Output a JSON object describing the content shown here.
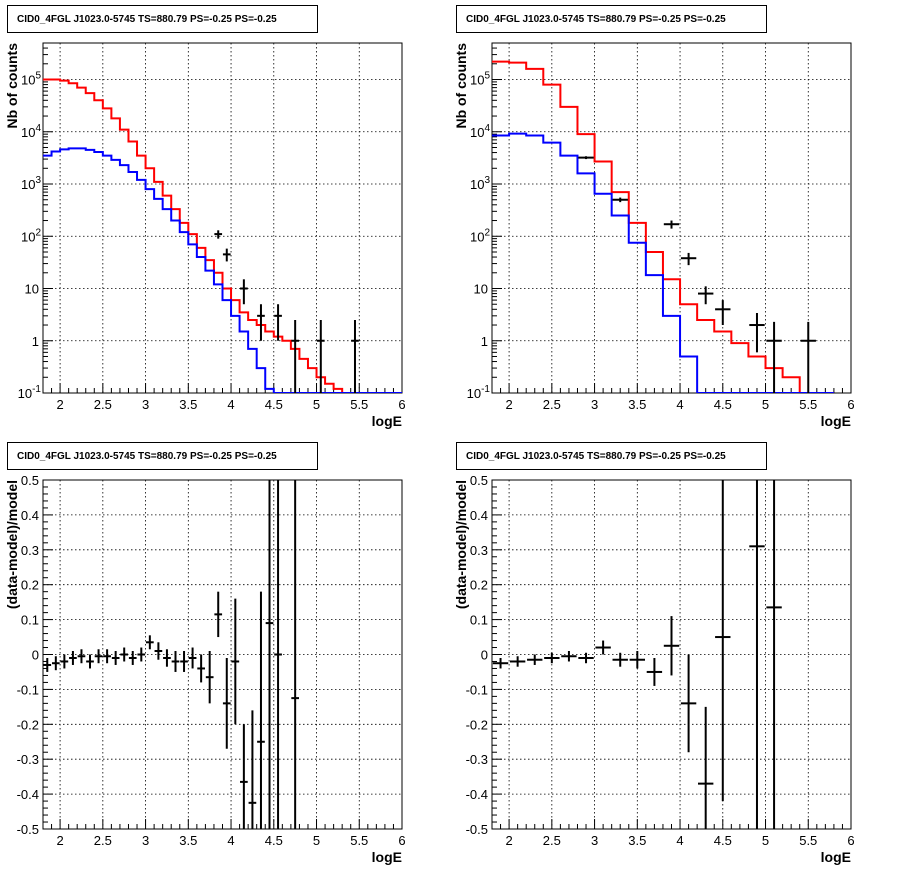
{
  "chart_data": [
    {
      "type": "line",
      "title": "CID0_4FGL J1023.0-5745 TS=880.79 PS=-0.25 PS=-0.25",
      "xlabel": "logE",
      "ylabel": "Nb of counts",
      "xlim": [
        1.8,
        6.0
      ],
      "ylim": [
        0.1,
        500000
      ],
      "yscale": "log",
      "grid": true,
      "x_ticks": [
        "2",
        "2.5",
        "3",
        "3.5",
        "4",
        "4.5",
        "5",
        "5.5",
        "6"
      ],
      "y_ticks": [
        "10^-1",
        "1",
        "10",
        "10^2",
        "10^3",
        "10^4",
        "10^5"
      ],
      "bin_edges": [
        1.8,
        1.9,
        2.0,
        2.1,
        2.2,
        2.3,
        2.4,
        2.5,
        2.6,
        2.7,
        2.8,
        2.9,
        3.0,
        3.1,
        3.2,
        3.3,
        3.4,
        3.5,
        3.6,
        3.7,
        3.8,
        3.9,
        4.0,
        4.1,
        4.2,
        4.3,
        4.4,
        4.5,
        4.6,
        4.7,
        4.8,
        4.9,
        5.0,
        5.1,
        5.2,
        5.3,
        5.4,
        5.5,
        5.6,
        5.7,
        5.8,
        5.9,
        6.0
      ],
      "series": [
        {
          "color": "#ff0000",
          "values": [
            100000,
            100000,
            95000,
            85000,
            70000,
            55000,
            40000,
            28000,
            18000,
            11000,
            6500,
            3500,
            2000,
            1100,
            600,
            330,
            180,
            110,
            60,
            35,
            20,
            10,
            6,
            3.5,
            2.5,
            2,
            1.5,
            1.2,
            1.0,
            0.7,
            0.45,
            0.3,
            0.2,
            0.15,
            0.12,
            0.1,
            0.1,
            0.1,
            0.1,
            0.1,
            0.1,
            0.1
          ]
        },
        {
          "color": "#0000ff",
          "values": [
            3500,
            4200,
            4600,
            4800,
            4800,
            4500,
            4100,
            3500,
            2900,
            2300,
            1700,
            1200,
            800,
            520,
            330,
            200,
            120,
            70,
            40,
            22,
            12,
            6,
            3,
            1.5,
            0.7,
            0.3,
            0.12,
            0.1,
            0.1,
            0.1,
            0.1,
            0.1,
            0.1,
            0.1,
            0.1,
            0.1,
            0.1,
            0.1,
            0.1,
            0.1,
            0.1,
            0.1
          ]
        }
      ],
      "points": [
        {
          "x": 3.85,
          "y": 110,
          "ylo": 90,
          "yhi": 130
        },
        {
          "x": 3.95,
          "y": 45,
          "ylo": 33,
          "yhi": 58
        },
        {
          "x": 4.15,
          "y": 10,
          "ylo": 5,
          "yhi": 15
        },
        {
          "x": 4.35,
          "y": 3,
          "ylo": 1,
          "yhi": 5
        },
        {
          "x": 4.55,
          "y": 3,
          "ylo": 1,
          "yhi": 5
        },
        {
          "x": 4.75,
          "y": 1,
          "ylo": 0.1,
          "yhi": 2.5
        },
        {
          "x": 5.05,
          "y": 1,
          "ylo": 0.1,
          "yhi": 2.5
        },
        {
          "x": 5.45,
          "y": 1,
          "ylo": 0.1,
          "yhi": 2.5
        }
      ]
    },
    {
      "type": "line",
      "title": "CID0_4FGL J1023.0-5745 TS=880.79 PS=-0.25 PS=-0.25",
      "xlabel": "logE",
      "ylabel": "Nb of counts",
      "xlim": [
        1.8,
        6.0
      ],
      "ylim": [
        0.1,
        500000
      ],
      "yscale": "log",
      "grid": true,
      "x_ticks": [
        "2",
        "2.5",
        "3",
        "3.5",
        "4",
        "4.5",
        "5",
        "5.5",
        "6"
      ],
      "y_ticks": [
        "10^-1",
        "1",
        "10",
        "10^2",
        "10^3",
        "10^4",
        "10^5"
      ],
      "bin_edges": [
        1.8,
        2.0,
        2.2,
        2.4,
        2.6,
        2.8,
        3.0,
        3.2,
        3.4,
        3.6,
        3.8,
        4.0,
        4.2,
        4.4,
        4.6,
        4.8,
        5.0,
        5.2,
        5.4,
        5.6,
        5.8,
        6.0
      ],
      "series": [
        {
          "color": "#ff0000",
          "values": [
            220000,
            210000,
            160000,
            80000,
            30000,
            9000,
            2700,
            700,
            180,
            50,
            15,
            5,
            2.5,
            1.5,
            0.9,
            0.5,
            0.3,
            0.2,
            0.1,
            0.1
          ]
        },
        {
          "color": "#0000ff",
          "values": [
            8500,
            9200,
            8500,
            6200,
            3500,
            1600,
            650,
            250,
            75,
            18,
            3,
            0.5,
            0.1,
            0.1,
            0.1,
            0.1,
            0.1,
            0.1,
            0.1,
            0.1
          ]
        }
      ],
      "points": [
        {
          "x": 2.9,
          "y": 3200,
          "ylo": 3000,
          "yhi": 3400
        },
        {
          "x": 3.3,
          "y": 500,
          "ylo": 450,
          "yhi": 550
        },
        {
          "x": 3.9,
          "y": 170,
          "ylo": 140,
          "yhi": 200
        },
        {
          "x": 4.1,
          "y": 38,
          "ylo": 28,
          "yhi": 48
        },
        {
          "x": 4.3,
          "y": 8,
          "ylo": 5,
          "yhi": 11
        },
        {
          "x": 4.5,
          "y": 4,
          "ylo": 2,
          "yhi": 6
        },
        {
          "x": 4.9,
          "y": 2,
          "ylo": 0.6,
          "yhi": 3.4
        },
        {
          "x": 5.1,
          "y": 1,
          "ylo": 0.1,
          "yhi": 2.3
        },
        {
          "x": 5.5,
          "y": 1,
          "ylo": 0.1,
          "yhi": 2.3
        }
      ]
    },
    {
      "type": "scatter",
      "title": "CID0_4FGL J1023.0-5745 TS=880.79 PS=-0.25 PS=-0.25",
      "xlabel": "logE",
      "ylabel": "(data-model)/model",
      "xlim": [
        1.8,
        6.0
      ],
      "ylim": [
        -0.5,
        0.5
      ],
      "grid": true,
      "x_ticks": [
        "2",
        "2.5",
        "3",
        "3.5",
        "4",
        "4.5",
        "5",
        "5.5",
        "6"
      ],
      "y_ticks": [
        "-0.5",
        "-0.4",
        "-0.3",
        "-0.2",
        "-0.1",
        "0",
        "0.1",
        "0.2",
        "0.3",
        "0.4",
        "0.5"
      ],
      "points": [
        {
          "x": 1.85,
          "y": -0.03,
          "ylo": -0.05,
          "yhi": -0.01
        },
        {
          "x": 1.95,
          "y": -0.025,
          "ylo": -0.045,
          "yhi": -0.005
        },
        {
          "x": 2.05,
          "y": -0.02,
          "ylo": -0.04,
          "yhi": 0.0
        },
        {
          "x": 2.15,
          "y": -0.01,
          "ylo": -0.03,
          "yhi": 0.01
        },
        {
          "x": 2.25,
          "y": -0.005,
          "ylo": -0.025,
          "yhi": 0.015
        },
        {
          "x": 2.35,
          "y": -0.02,
          "ylo": -0.04,
          "yhi": 0.0
        },
        {
          "x": 2.45,
          "y": -0.005,
          "ylo": -0.025,
          "yhi": 0.015
        },
        {
          "x": 2.55,
          "y": -0.005,
          "ylo": -0.025,
          "yhi": 0.015
        },
        {
          "x": 2.65,
          "y": -0.01,
          "ylo": -0.03,
          "yhi": 0.01
        },
        {
          "x": 2.75,
          "y": 0.0,
          "ylo": -0.02,
          "yhi": 0.02
        },
        {
          "x": 2.85,
          "y": -0.01,
          "ylo": -0.03,
          "yhi": 0.01
        },
        {
          "x": 2.95,
          "y": 0.0,
          "ylo": -0.02,
          "yhi": 0.02
        },
        {
          "x": 3.05,
          "y": 0.035,
          "ylo": 0.015,
          "yhi": 0.055
        },
        {
          "x": 3.15,
          "y": 0.01,
          "ylo": -0.015,
          "yhi": 0.035
        },
        {
          "x": 3.25,
          "y": -0.01,
          "ylo": -0.035,
          "yhi": 0.015
        },
        {
          "x": 3.35,
          "y": -0.02,
          "ylo": -0.05,
          "yhi": 0.01
        },
        {
          "x": 3.45,
          "y": -0.02,
          "ylo": -0.05,
          "yhi": 0.01
        },
        {
          "x": 3.55,
          "y": -0.01,
          "ylo": -0.04,
          "yhi": 0.02
        },
        {
          "x": 3.65,
          "y": -0.04,
          "ylo": -0.08,
          "yhi": 0.0
        },
        {
          "x": 3.75,
          "y": -0.065,
          "ylo": -0.14,
          "yhi": 0.01
        },
        {
          "x": 3.85,
          "y": 0.115,
          "ylo": 0.05,
          "yhi": 0.18
        },
        {
          "x": 3.95,
          "y": -0.14,
          "ylo": -0.27,
          "yhi": -0.01
        },
        {
          "x": 4.05,
          "y": -0.02,
          "ylo": -0.2,
          "yhi": 0.16
        },
        {
          "x": 4.15,
          "y": -0.365,
          "ylo": -0.5,
          "yhi": -0.2
        },
        {
          "x": 4.25,
          "y": -0.425,
          "ylo": -0.5,
          "yhi": -0.16
        },
        {
          "x": 4.35,
          "y": -0.25,
          "ylo": -0.5,
          "yhi": 0.18
        },
        {
          "x": 4.45,
          "y": 0.09,
          "ylo": -0.5,
          "yhi": 0.5
        },
        {
          "x": 4.55,
          "y": 0.0,
          "ylo": -0.5,
          "yhi": 0.5
        },
        {
          "x": 4.75,
          "y": -0.125,
          "ylo": -0.5,
          "yhi": 0.5
        }
      ]
    },
    {
      "type": "scatter",
      "title": "CID0_4FGL J1023.0-5745 TS=880.79 PS=-0.25 PS=-0.25",
      "xlabel": "logE",
      "ylabel": "(data-model)/model",
      "xlim": [
        1.8,
        6.0
      ],
      "ylim": [
        -0.5,
        0.5
      ],
      "grid": true,
      "x_ticks": [
        "2",
        "2.5",
        "3",
        "3.5",
        "4",
        "4.5",
        "5",
        "5.5",
        "6"
      ],
      "y_ticks": [
        "-0.5",
        "-0.4",
        "-0.3",
        "-0.2",
        "-0.1",
        "0",
        "0.1",
        "0.2",
        "0.3",
        "0.4",
        "0.5"
      ],
      "points": [
        {
          "x": 1.9,
          "y": -0.025,
          "ylo": -0.04,
          "yhi": -0.01
        },
        {
          "x": 2.1,
          "y": -0.02,
          "ylo": -0.035,
          "yhi": -0.005
        },
        {
          "x": 2.3,
          "y": -0.015,
          "ylo": -0.03,
          "yhi": 0.0
        },
        {
          "x": 2.5,
          "y": -0.01,
          "ylo": -0.025,
          "yhi": 0.005
        },
        {
          "x": 2.7,
          "y": -0.005,
          "ylo": -0.02,
          "yhi": 0.01
        },
        {
          "x": 2.9,
          "y": -0.01,
          "ylo": -0.025,
          "yhi": 0.005
        },
        {
          "x": 3.1,
          "y": 0.02,
          "ylo": 0.0,
          "yhi": 0.04
        },
        {
          "x": 3.3,
          "y": -0.015,
          "ylo": -0.035,
          "yhi": 0.005
        },
        {
          "x": 3.5,
          "y": -0.015,
          "ylo": -0.04,
          "yhi": 0.01
        },
        {
          "x": 3.7,
          "y": -0.05,
          "ylo": -0.09,
          "yhi": -0.01
        },
        {
          "x": 3.9,
          "y": 0.025,
          "ylo": -0.06,
          "yhi": 0.11
        },
        {
          "x": 4.1,
          "y": -0.14,
          "ylo": -0.28,
          "yhi": 0.0
        },
        {
          "x": 4.3,
          "y": -0.37,
          "ylo": -0.5,
          "yhi": -0.15
        },
        {
          "x": 4.5,
          "y": 0.05,
          "ylo": -0.42,
          "yhi": 0.5
        },
        {
          "x": 4.9,
          "y": 0.31,
          "ylo": -0.5,
          "yhi": 0.5
        },
        {
          "x": 5.1,
          "y": 0.135,
          "ylo": -0.5,
          "yhi": 0.5
        }
      ]
    }
  ]
}
